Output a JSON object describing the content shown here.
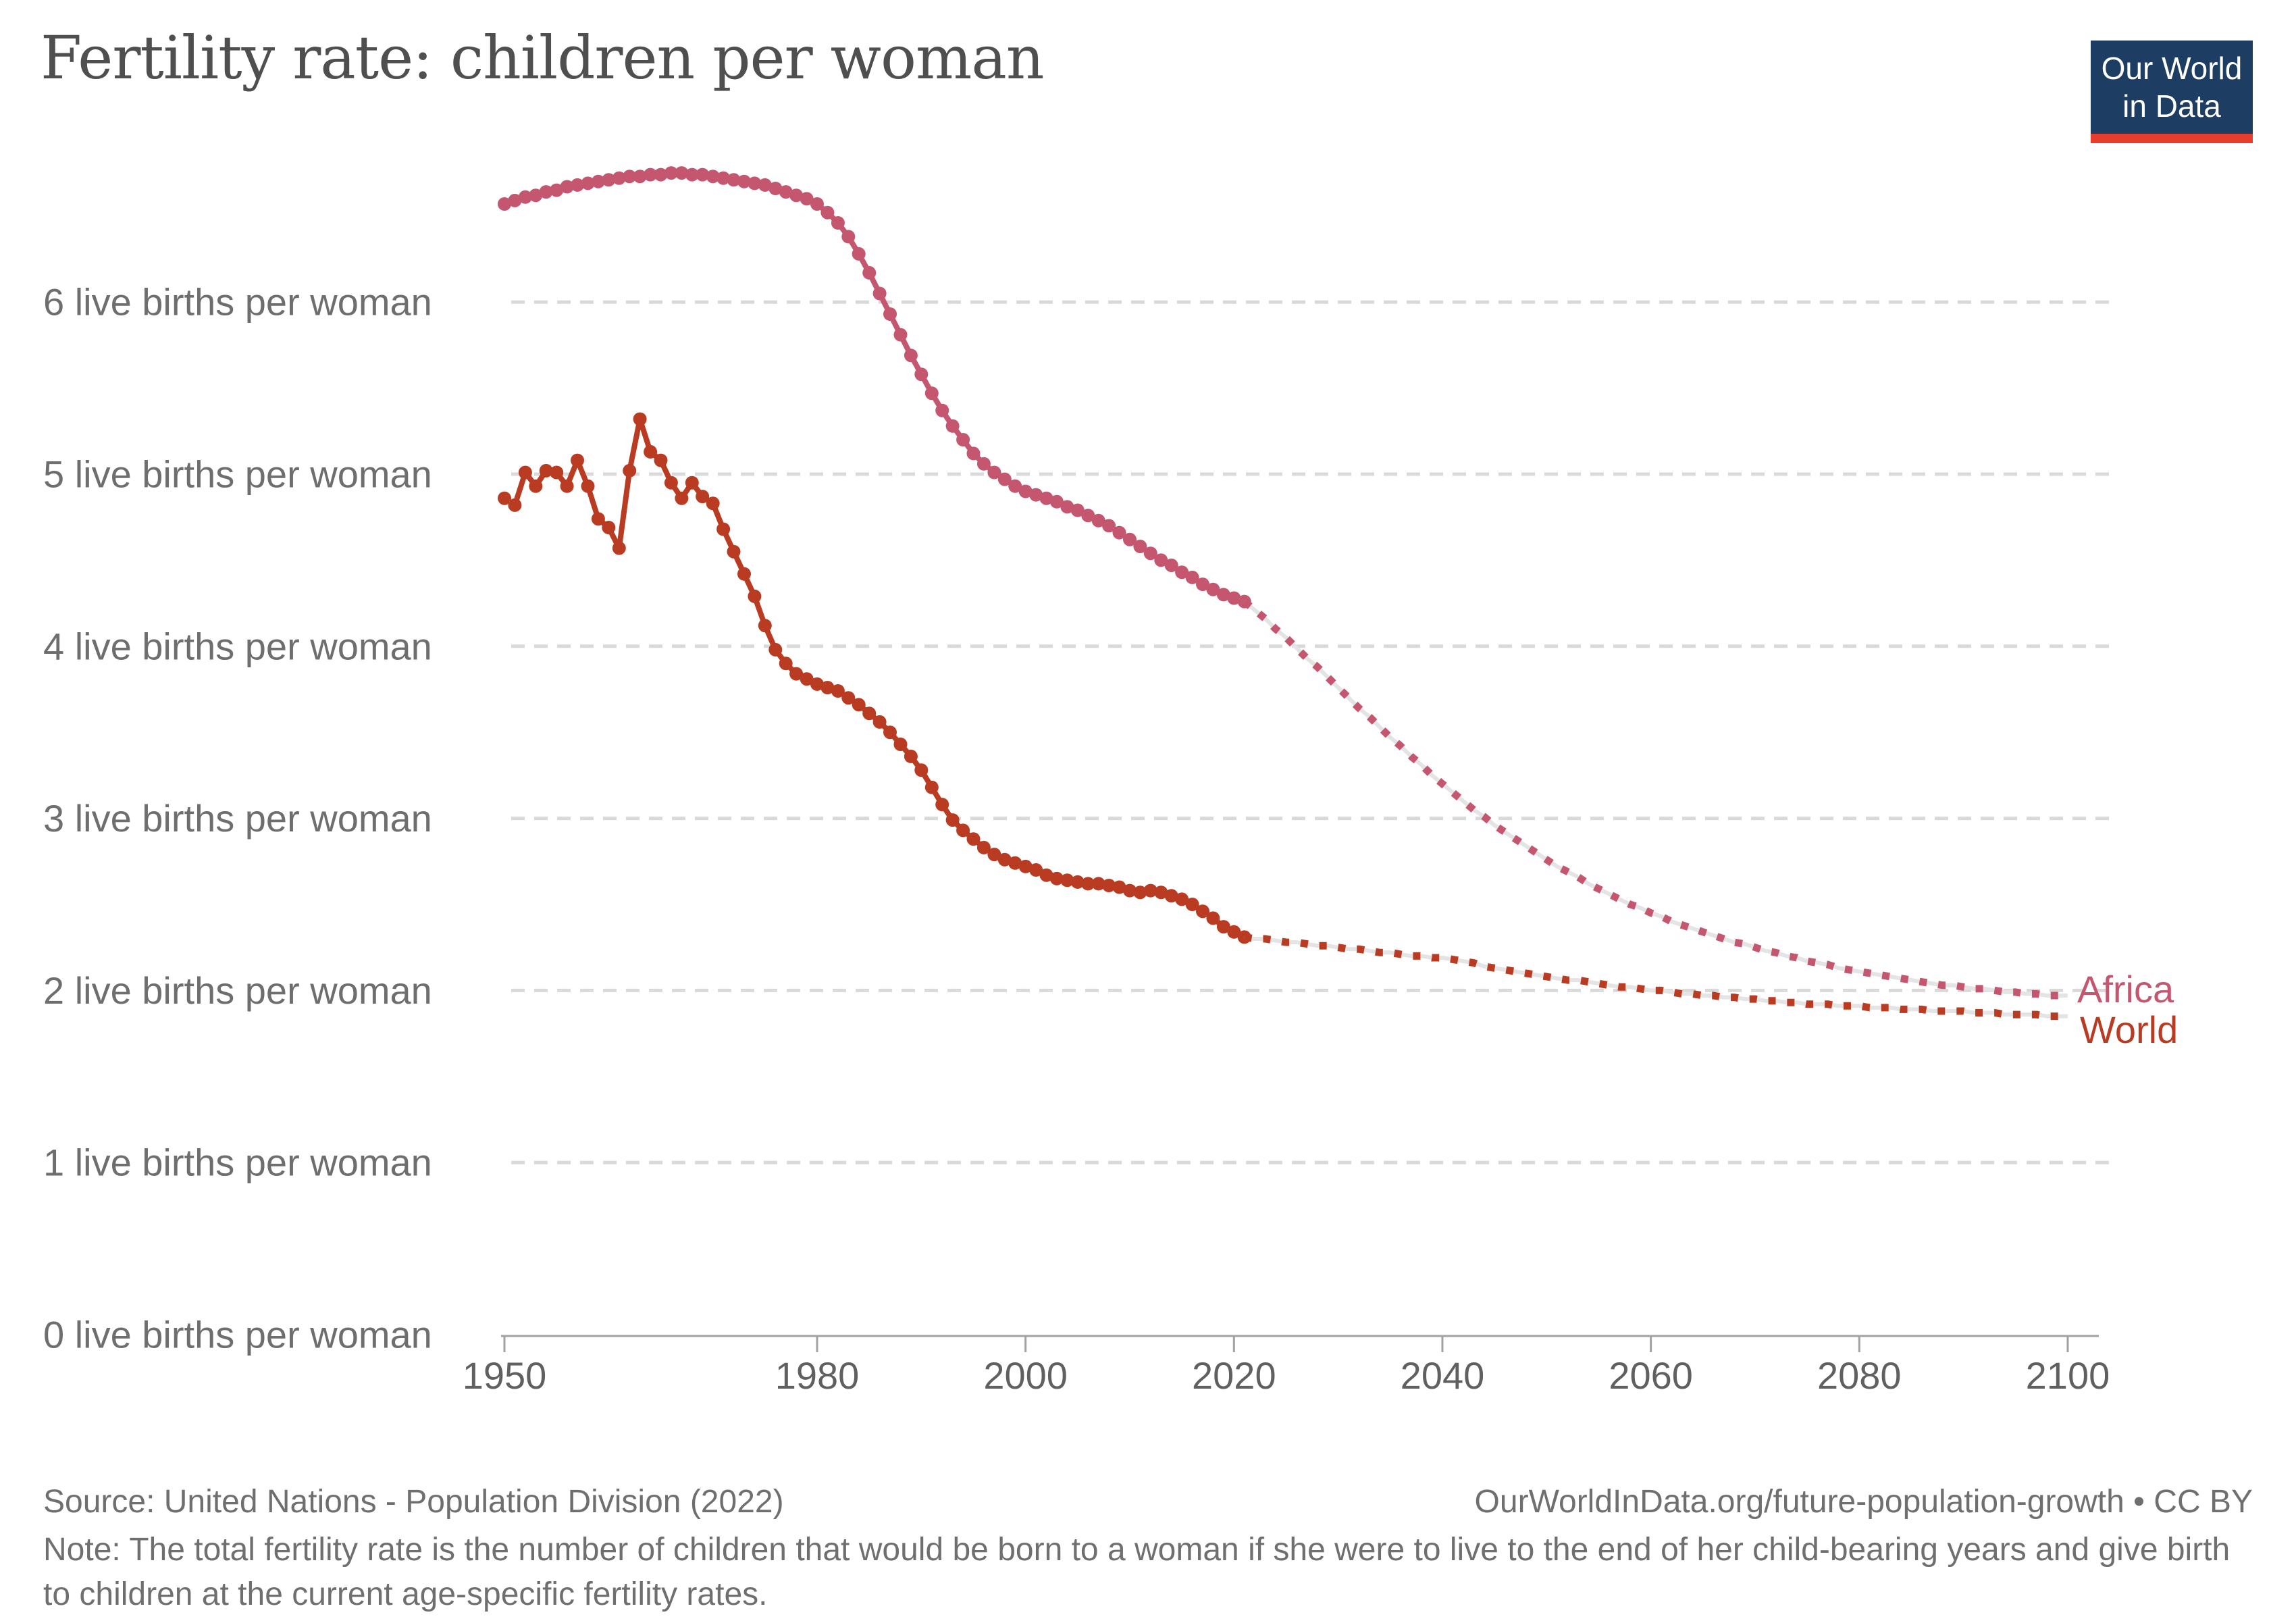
{
  "header": {
    "title": "Fertility rate: children per woman"
  },
  "logo": {
    "line1": "Our World",
    "line2": "in Data",
    "bg_color": "#1d3d63",
    "bar_color": "#e53e2d"
  },
  "footer": {
    "source": "Source: United Nations - Population Division (2022)",
    "attribution": "OurWorldInData.org/future-population-growth • CC BY",
    "note": "Note: The total fertility rate is the number of children that would be born to a woman if she were to live to the end of her child-bearing years and give birth to children at the current age-specific fertility rates."
  },
  "chart_data": {
    "type": "line",
    "title": "Fertility rate: children per woman",
    "xlabel": "",
    "ylabel": "live births per woman",
    "grid": true,
    "legend_position": "right-end-of-line",
    "x": {
      "min": 1950,
      "max": 2105,
      "ticks": [
        1950,
        1980,
        2000,
        2020,
        2040,
        2060,
        2080,
        2100
      ]
    },
    "y": {
      "min": 0,
      "max": 6.9,
      "ticks": [
        {
          "value": 6,
          "label": "6 live births per woman"
        },
        {
          "value": 5,
          "label": "5 live births per woman"
        },
        {
          "value": 4,
          "label": "4 live births per woman"
        },
        {
          "value": 3,
          "label": "3 live births per woman"
        },
        {
          "value": 2,
          "label": "2 live births per woman"
        },
        {
          "value": 1,
          "label": "1 live births per woman"
        },
        {
          "value": 0,
          "label": "0 live births per woman"
        }
      ]
    },
    "legend": [
      {
        "label": "Africa",
        "color": "#c4576f"
      },
      {
        "label": "World",
        "color": "#b93b22"
      }
    ],
    "series": [
      {
        "name": "Africa",
        "color": "#c4576f",
        "style": "solid-dots",
        "start_year": 1950,
        "values": [
          6.57,
          6.59,
          6.61,
          6.62,
          6.64,
          6.65,
          6.67,
          6.68,
          6.69,
          6.7,
          6.71,
          6.72,
          6.73,
          6.73,
          6.74,
          6.74,
          6.75,
          6.75,
          6.74,
          6.74,
          6.73,
          6.72,
          6.71,
          6.7,
          6.69,
          6.68,
          6.66,
          6.64,
          6.62,
          6.6,
          6.57,
          6.52,
          6.46,
          6.38,
          6.28,
          6.17,
          6.05,
          5.93,
          5.81,
          5.69,
          5.58,
          5.47,
          5.37,
          5.28,
          5.2,
          5.12,
          5.06,
          5.01,
          4.97,
          4.93,
          4.9,
          4.88,
          4.86,
          4.84,
          4.81,
          4.79,
          4.76,
          4.73,
          4.7,
          4.66,
          4.62,
          4.58,
          4.54,
          4.5,
          4.47,
          4.43,
          4.4,
          4.36,
          4.33,
          4.3,
          4.28,
          4.26
        ]
      },
      {
        "name": "Africa (projected)",
        "color": "#c4576f",
        "style": "dotted",
        "start_year": 2021,
        "values": [
          4.26,
          4.21,
          4.16,
          4.1,
          4.05,
          3.99,
          3.93,
          3.88,
          3.82,
          3.76,
          3.7,
          3.64,
          3.59,
          3.53,
          3.47,
          3.42,
          3.36,
          3.31,
          3.25,
          3.2,
          3.15,
          3.1,
          3.05,
          3.01,
          2.96,
          2.92,
          2.88,
          2.84,
          2.8,
          2.76,
          2.72,
          2.69,
          2.66,
          2.62,
          2.59,
          2.56,
          2.53,
          2.5,
          2.48,
          2.45,
          2.43,
          2.4,
          2.38,
          2.36,
          2.34,
          2.32,
          2.3,
          2.28,
          2.27,
          2.25,
          2.23,
          2.22,
          2.2,
          2.19,
          2.17,
          2.16,
          2.15,
          2.13,
          2.12,
          2.11,
          2.1,
          2.09,
          2.08,
          2.07,
          2.06,
          2.05,
          2.04,
          2.03,
          2.03,
          2.02,
          2.01,
          2.01,
          2.0,
          1.99,
          1.99,
          1.98,
          1.98,
          1.97,
          1.97,
          1.97
        ]
      },
      {
        "name": "World",
        "color": "#b93b22",
        "style": "solid-dots",
        "start_year": 1950,
        "values": [
          4.86,
          4.82,
          5.01,
          4.93,
          5.02,
          5.01,
          4.93,
          5.08,
          4.93,
          4.74,
          4.69,
          4.57,
          5.02,
          5.32,
          5.13,
          5.08,
          4.95,
          4.86,
          4.95,
          4.87,
          4.83,
          4.68,
          4.55,
          4.42,
          4.29,
          4.12,
          3.98,
          3.9,
          3.84,
          3.81,
          3.78,
          3.76,
          3.74,
          3.7,
          3.66,
          3.61,
          3.56,
          3.5,
          3.43,
          3.36,
          3.28,
          3.18,
          3.08,
          2.99,
          2.93,
          2.88,
          2.83,
          2.79,
          2.76,
          2.74,
          2.72,
          2.7,
          2.67,
          2.65,
          2.64,
          2.63,
          2.62,
          2.62,
          2.61,
          2.6,
          2.58,
          2.57,
          2.58,
          2.57,
          2.55,
          2.53,
          2.5,
          2.46,
          2.42,
          2.37,
          2.34,
          2.31
        ]
      },
      {
        "name": "World (projected)",
        "color": "#b93b22",
        "style": "dotted",
        "start_year": 2021,
        "values": [
          2.31,
          2.3,
          2.3,
          2.29,
          2.28,
          2.28,
          2.27,
          2.26,
          2.26,
          2.25,
          2.24,
          2.24,
          2.23,
          2.22,
          2.22,
          2.21,
          2.2,
          2.2,
          2.19,
          2.19,
          2.18,
          2.17,
          2.16,
          2.14,
          2.13,
          2.12,
          2.11,
          2.1,
          2.09,
          2.08,
          2.07,
          2.06,
          2.06,
          2.05,
          2.04,
          2.03,
          2.02,
          2.02,
          2.01,
          2.0,
          2.0,
          1.99,
          1.98,
          1.98,
          1.97,
          1.97,
          1.96,
          1.96,
          1.95,
          1.95,
          1.94,
          1.94,
          1.93,
          1.93,
          1.92,
          1.92,
          1.92,
          1.91,
          1.91,
          1.91,
          1.9,
          1.9,
          1.9,
          1.89,
          1.89,
          1.89,
          1.88,
          1.88,
          1.88,
          1.88,
          1.87,
          1.87,
          1.87,
          1.86,
          1.86,
          1.86,
          1.86,
          1.85,
          1.85,
          1.85
        ]
      }
    ],
    "style_colors": {
      "gridline": "#d9d9d9",
      "axis": "#a2a2a2",
      "tick_label": "#606060",
      "y_label": "#6e6e6e",
      "projection_underlay": "#e4e4e4"
    }
  }
}
